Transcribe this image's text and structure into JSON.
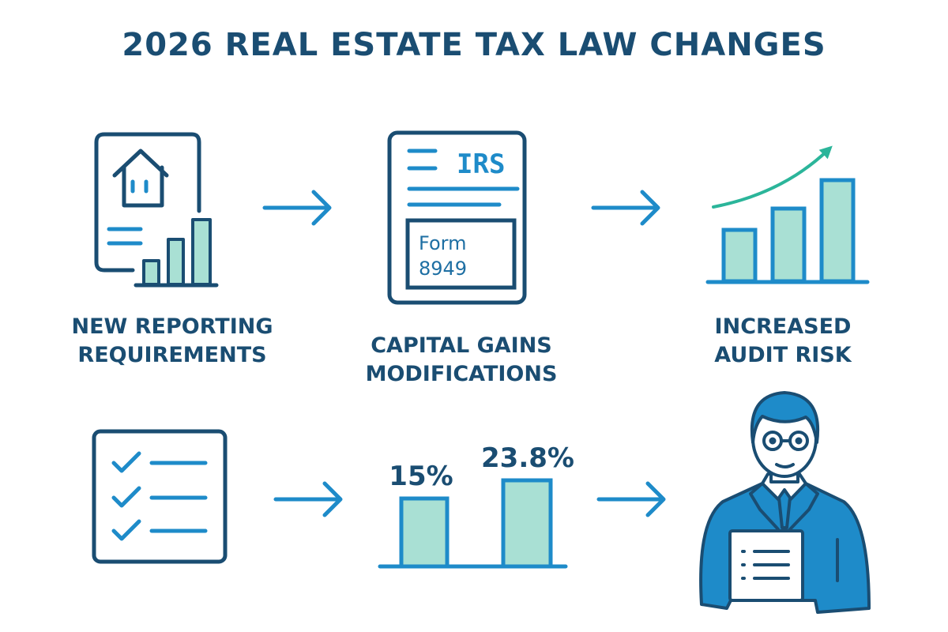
{
  "title": "2026 REAL ESTATE TAX LAW CHANGES",
  "colors": {
    "navy": "#1a4d72",
    "blue": "#1e8bc9",
    "mint": "#a9e0d4",
    "teal": "#2bb59a"
  },
  "steps": [
    {
      "label_line1": "NEW REPORTING",
      "label_line2": "REQUIREMENTS",
      "icon": "document-house-chart-icon"
    },
    {
      "label_line1": "CAPITAL GAINS",
      "label_line2": "MODIFICATIONS",
      "icon": "irs-form-icon",
      "header": "IRS",
      "form_line1": "Form",
      "form_line2": "8949"
    },
    {
      "label_line1": "INCREASED",
      "label_line2": "AUDIT RISK",
      "icon": "rising-bar-chart-icon"
    }
  ],
  "bottom": {
    "checklist_icon": "checklist-icon",
    "rates": [
      {
        "value": 15,
        "label": "15%"
      },
      {
        "value": 23.8,
        "label": "23.8%"
      }
    ],
    "advisor_icon": "tax-advisor-icon"
  }
}
